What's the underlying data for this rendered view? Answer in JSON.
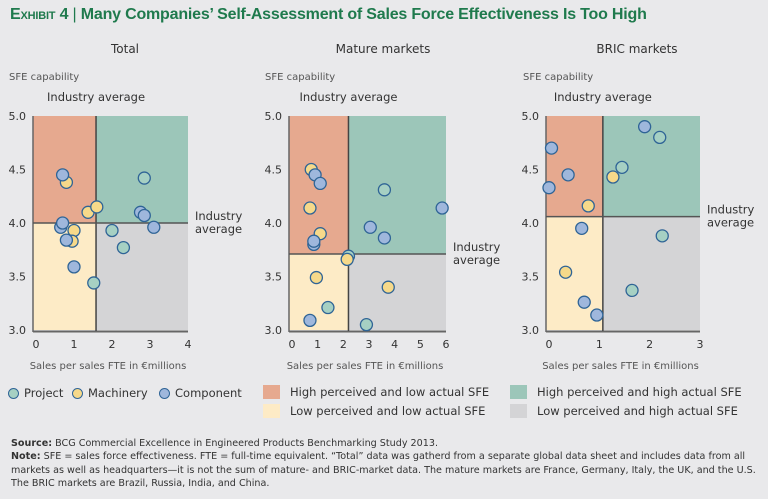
{
  "title": {
    "exhibit": "Exhibit 4",
    "separator": "|",
    "text": "Many Companies’ Self-Assessment of Sales Force Effectiveness Is Too High"
  },
  "colors": {
    "title": "#1f7a4d",
    "quadrant_high_low": "#e6a98f",
    "quadrant_high_high": "#9cc6b9",
    "quadrant_low_low": "#fdebc6",
    "quadrant_low_high": "#d4d4d6",
    "project": "#a6d0c3",
    "machinery": "#f6d98a",
    "component": "#9fb7dc",
    "marker_edge": "#2f6496"
  },
  "chart_data": [
    {
      "type": "scatter",
      "title": "Total",
      "ylabel": "SFE capability",
      "xlabel": "Sales per sales FTE in €millions",
      "xlim": [
        0,
        4
      ],
      "ylim": [
        3.0,
        5.0
      ],
      "xticks": [
        "0",
        "1",
        "2",
        "3",
        "4"
      ],
      "yticks": [
        "3.0",
        "3.5",
        "4.0",
        "4.5",
        "5.0"
      ],
      "industry_average_x": 1.58,
      "industry_average_y": 4.0,
      "industry_average_x_label": "Industry average",
      "industry_average_y_label": [
        "Industry",
        "average"
      ],
      "series": [
        {
          "name": "Project",
          "points": [
            [
              2.85,
              4.42
            ],
            [
              2.0,
              3.93
            ],
            [
              2.3,
              3.77
            ],
            [
              1.52,
              3.44
            ]
          ]
        },
        {
          "name": "Machinery",
          "points": [
            [
              0.8,
              4.38
            ],
            [
              1.37,
              4.1
            ],
            [
              1.6,
              4.15
            ],
            [
              1.0,
              3.93
            ],
            [
              0.95,
              3.83
            ]
          ]
        },
        {
          "name": "Component",
          "points": [
            [
              0.7,
              4.45
            ],
            [
              2.75,
              4.1
            ],
            [
              2.85,
              4.07
            ],
            [
              3.1,
              3.96
            ],
            [
              0.65,
              3.96
            ],
            [
              0.7,
              4.0
            ],
            [
              0.8,
              3.84
            ],
            [
              1.0,
              3.59
            ]
          ]
        }
      ]
    },
    {
      "type": "scatter",
      "title": "Mature markets",
      "ylabel": "SFE capability",
      "xlabel": "Sales per sales FTE in €millions",
      "xlim": [
        0,
        6
      ],
      "ylim": [
        3.0,
        5.0
      ],
      "xticks": [
        "0",
        "1",
        "2",
        "3",
        "4",
        "5",
        "6"
      ],
      "yticks": [
        "3.0",
        "3.5",
        "4.0",
        "4.5",
        "5.0"
      ],
      "industry_average_x": 2.2,
      "industry_average_y": 3.71,
      "industry_average_x_label": "Industry average",
      "industry_average_y_label": [
        "Industry",
        "average"
      ],
      "series": [
        {
          "name": "Project",
          "points": [
            [
              2.2,
              3.69
            ],
            [
              3.6,
              4.31
            ],
            [
              1.4,
              3.21
            ],
            [
              2.9,
              3.05
            ]
          ]
        },
        {
          "name": "Machinery",
          "points": [
            [
              0.75,
              4.5
            ],
            [
              0.7,
              4.14
            ],
            [
              1.1,
              3.9
            ],
            [
              2.15,
              3.66
            ],
            [
              0.95,
              3.49
            ],
            [
              3.75,
              3.4
            ]
          ]
        },
        {
          "name": "Component",
          "points": [
            [
              0.9,
              4.45
            ],
            [
              1.1,
              4.37
            ],
            [
              0.85,
              3.8
            ],
            [
              0.85,
              3.83
            ],
            [
              5.85,
              4.14
            ],
            [
              3.05,
              3.96
            ],
            [
              3.6,
              3.86
            ],
            [
              0.7,
              3.09
            ]
          ]
        }
      ]
    },
    {
      "type": "scatter",
      "title": "BRIC markets",
      "ylabel": "SFE capability",
      "xlabel": "Sales per sales FTE in €millions",
      "xlim": [
        0,
        3
      ],
      "ylim": [
        3.0,
        5.0
      ],
      "xticks": [
        "0",
        "1",
        "2",
        "3"
      ],
      "yticks": [
        "3.0",
        "3.5",
        "4.0",
        "4.5",
        "5.0"
      ],
      "industry_average_x": 1.07,
      "industry_average_y": 4.06,
      "industry_average_x_label": "Industry average",
      "industry_average_y_label": [
        "Industry",
        "average"
      ],
      "series": [
        {
          "name": "Project",
          "points": [
            [
              1.45,
              4.52
            ],
            [
              2.2,
              4.8
            ],
            [
              2.25,
              3.88
            ],
            [
              1.65,
              3.37
            ]
          ]
        },
        {
          "name": "Machinery",
          "points": [
            [
              0.78,
              4.16
            ],
            [
              1.27,
              4.43
            ],
            [
              0.33,
              3.54
            ]
          ]
        },
        {
          "name": "Component",
          "points": [
            [
              0.05,
              4.7
            ],
            [
              0.38,
              4.45
            ],
            [
              0.0,
              4.33
            ],
            [
              1.9,
              4.9
            ],
            [
              0.65,
              3.95
            ],
            [
              0.7,
              3.26
            ],
            [
              0.95,
              3.14
            ]
          ]
        }
      ]
    }
  ],
  "legend": {
    "markers": [
      {
        "label": "Project",
        "key": "project"
      },
      {
        "label": "Machinery",
        "key": "machinery"
      },
      {
        "label": "Component",
        "key": "component"
      }
    ],
    "quadrants": [
      {
        "label": "High perceived and low actual SFE",
        "key": "quadrant_high_low"
      },
      {
        "label": "Low perceived and low actual SFE",
        "key": "quadrant_low_low"
      },
      {
        "label": "High perceived and high actual SFE",
        "key": "quadrant_high_high"
      },
      {
        "label": "Low perceived and high actual SFE",
        "key": "quadrant_low_high"
      }
    ]
  },
  "notes": {
    "source_label": "Source:",
    "source_text": " BCG Commercial Excellence in Engineered Products Benchmarking Study 2013.",
    "note_label": "Note:",
    "note_text": " SFE = sales force effectiveness. FTE = full-time equivalent. “Total” data was gatherd from a separate global data sheet and includes data from all markets as well as headquarters—it is not the sum of mature- and BRIC-market data. The mature markets are France, Germany, Italy, the UK, and the U.S. The BRIC markets are Brazil, Russia, India, and China."
  }
}
